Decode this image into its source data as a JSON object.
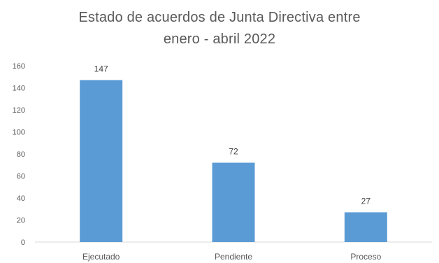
{
  "chart_data": {
    "type": "bar",
    "title_line1": "Estado de acuerdos de Junta Directiva entre",
    "title_line2": "enero - abril 2022",
    "categories": [
      "Ejecutado",
      "Pendiente",
      "Proceso"
    ],
    "values": [
      147,
      72,
      27
    ],
    "data_labels": [
      "147",
      "72",
      "27"
    ],
    "yticks": [
      0,
      20,
      40,
      60,
      80,
      100,
      120,
      140,
      160
    ],
    "ylim": [
      0,
      160
    ],
    "xlabel": "",
    "ylabel": "",
    "grid": false,
    "legend": "none",
    "bar_color": "#5B9BD5",
    "axis_color": "#D9D9D9",
    "text_color": "#595959"
  }
}
